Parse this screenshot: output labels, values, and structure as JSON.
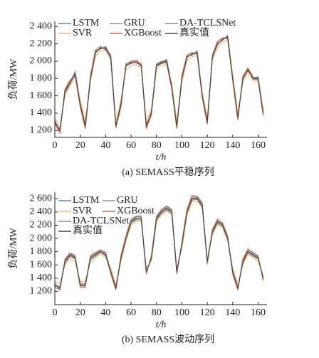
{
  "chart_data": [
    {
      "type": "line",
      "caption": "(a) SEMASS平稳序列",
      "xlabel": "t/h",
      "ylabel": "负荷/MW",
      "x": [
        0,
        4,
        8,
        12,
        16,
        20,
        24,
        28,
        32,
        36,
        40,
        44,
        48,
        52,
        56,
        60,
        64,
        68,
        72,
        76,
        80,
        84,
        88,
        92,
        96,
        100,
        104,
        108,
        112,
        116,
        120,
        124,
        128,
        132,
        136,
        140,
        144,
        148,
        152,
        156,
        160,
        164
      ],
      "xlim": [
        0,
        167
      ],
      "xticks": [
        0,
        20,
        40,
        60,
        80,
        100,
        120,
        140,
        160
      ],
      "ylim": [
        1120,
        2460
      ],
      "yticks": [
        {
          "value": 1200,
          "label": "1 200"
        },
        {
          "value": 1400,
          "label": "1 400"
        },
        {
          "value": 1600,
          "label": "1 600"
        },
        {
          "value": 1800,
          "label": "1 800"
        },
        {
          "value": 2000,
          "label": "2 000"
        },
        {
          "value": 2200,
          "label": "2 200"
        },
        {
          "value": 2400,
          "label": "2 400"
        }
      ],
      "legend": "upper left",
      "series": [
        {
          "name": "LSTM",
          "color": "#5b8fbf",
          "values": [
            1320,
            1180,
            1670,
            1760,
            1880,
            1520,
            1230,
            1820,
            2120,
            2140,
            2170,
            2060,
            1270,
            1480,
            1960,
            1970,
            2010,
            1940,
            1230,
            1420,
            1960,
            1990,
            2020,
            1720,
            1230,
            1790,
            2060,
            2070,
            2120,
            1620,
            1280,
            2040,
            2210,
            2240,
            2300,
            1820,
            1330,
            1820,
            1890,
            1810,
            1820,
            1380
          ]
        },
        {
          "name": "GRU",
          "color": "#8a9a84",
          "values": [
            1280,
            1220,
            1630,
            1740,
            1860,
            1480,
            1270,
            1790,
            2090,
            2160,
            2140,
            2040,
            1240,
            1520,
            1940,
            1990,
            1980,
            1960,
            1270,
            1390,
            1940,
            1970,
            1990,
            1690,
            1270,
            1810,
            2040,
            2090,
            2090,
            1590,
            1320,
            2060,
            2190,
            2260,
            2270,
            1790,
            1370,
            1790,
            1910,
            1790,
            1790,
            1420
          ]
        },
        {
          "name": "DA-TCLSNet",
          "color": "#8c8c96",
          "values": [
            1310,
            1190,
            1660,
            1750,
            1860,
            1510,
            1240,
            1810,
            2110,
            2150,
            2160,
            2050,
            1260,
            1490,
            1950,
            1990,
            1990,
            1950,
            1240,
            1410,
            1950,
            1980,
            2010,
            1710,
            1240,
            1800,
            2050,
            2080,
            2110,
            1610,
            1290,
            2050,
            2200,
            2250,
            2290,
            1810,
            1340,
            1810,
            1900,
            1800,
            1810,
            1390
          ]
        },
        {
          "name": "SVR",
          "color": "#f2b77a",
          "values": [
            1350,
            1230,
            1600,
            1720,
            1820,
            1550,
            1300,
            1760,
            2060,
            2120,
            2120,
            2010,
            1300,
            1550,
            1900,
            1950,
            1960,
            1920,
            1300,
            1450,
            1910,
            1950,
            1970,
            1750,
            1300,
            1760,
            2010,
            2050,
            2070,
            1650,
            1350,
            2010,
            2160,
            2220,
            2250,
            1850,
            1400,
            1760,
            1870,
            1770,
            1770,
            1450
          ]
        },
        {
          "name": "XGBoost",
          "color": "#e0643a",
          "values": [
            1280,
            1170,
            1680,
            1780,
            1830,
            1470,
            1220,
            1830,
            2130,
            2170,
            2130,
            2070,
            1230,
            1470,
            1970,
            2000,
            2010,
            1970,
            1220,
            1380,
            1970,
            2000,
            1980,
            1680,
            1220,
            1830,
            2070,
            2100,
            2080,
            1580,
            1270,
            2070,
            2230,
            2270,
            2260,
            1780,
            1320,
            1830,
            1920,
            1820,
            1780,
            1370
          ]
        },
        {
          "name": "真实值",
          "color": "#4a4a4a",
          "values": [
            1300,
            1200,
            1650,
            1750,
            1850,
            1500,
            1250,
            1800,
            2100,
            2150,
            2150,
            2050,
            1250,
            1500,
            1950,
            1980,
            1990,
            1950,
            1250,
            1400,
            1950,
            1980,
            2000,
            1700,
            1250,
            1800,
            2050,
            2080,
            2100,
            1600,
            1300,
            2050,
            2200,
            2250,
            2280,
            1800,
            1350,
            1800,
            1900,
            1800,
            1800,
            1400
          ]
        }
      ]
    },
    {
      "type": "line",
      "caption": "(b) SEMASS波动序列",
      "xlabel": "t/h",
      "ylabel": "负荷/MW",
      "x": [
        0,
        4,
        8,
        12,
        16,
        20,
        24,
        28,
        32,
        36,
        40,
        44,
        48,
        52,
        56,
        60,
        64,
        68,
        72,
        76,
        80,
        84,
        88,
        92,
        96,
        100,
        104,
        108,
        112,
        116,
        120,
        124,
        128,
        132,
        136,
        140,
        144,
        148,
        152,
        156,
        160,
        164
      ],
      "xlim": [
        0,
        167
      ],
      "xticks": [
        0,
        20,
        40,
        60,
        80,
        100,
        120,
        140,
        160
      ],
      "ylim": [
        1000,
        2700
      ],
      "yticks": [
        {
          "value": 1200,
          "label": "1 200"
        },
        {
          "value": 1400,
          "label": "1 400"
        },
        {
          "value": 1600,
          "label": "1 600"
        },
        {
          "value": 1800,
          "label": "1 800"
        },
        {
          "value": 2000,
          "label": "2 000"
        },
        {
          "value": 2200,
          "label": "2 200"
        },
        {
          "value": 2400,
          "label": "2 400"
        },
        {
          "value": 2600,
          "label": "2 600"
        }
      ],
      "legend": "upper left",
      "series": [
        {
          "name": "LSTM",
          "color": "#5b8fbf",
          "values": [
            1320,
            1230,
            1670,
            1770,
            1720,
            1280,
            1280,
            1720,
            1770,
            1820,
            1780,
            1520,
            1230,
            1720,
            2030,
            2270,
            2330,
            2320,
            1480,
            1720,
            2330,
            2420,
            2480,
            2420,
            1480,
            1920,
            2430,
            2630,
            2620,
            2520,
            1630,
            2120,
            2270,
            2220,
            2020,
            1480,
            1230,
            1670,
            1820,
            1770,
            1720,
            1380
          ]
        },
        {
          "name": "GRU",
          "color": "#8a9a84",
          "values": [
            1280,
            1270,
            1630,
            1730,
            1690,
            1320,
            1320,
            1680,
            1730,
            1790,
            1740,
            1480,
            1270,
            1680,
            1980,
            2230,
            2280,
            2280,
            1520,
            1680,
            2280,
            2380,
            2430,
            2380,
            1520,
            1880,
            2380,
            2580,
            2590,
            2480,
            1670,
            2080,
            2230,
            2180,
            1980,
            1520,
            1270,
            1630,
            1780,
            1730,
            1690,
            1420
          ]
        },
        {
          "name": "SVR",
          "color": "#f2b77a",
          "values": [
            1350,
            1300,
            1600,
            1700,
            1650,
            1350,
            1350,
            1650,
            1710,
            1760,
            1710,
            1550,
            1300,
            1650,
            1960,
            2200,
            2260,
            2260,
            1550,
            1660,
            2250,
            2350,
            2410,
            2360,
            1550,
            1850,
            2350,
            2560,
            2560,
            2460,
            1700,
            2050,
            2210,
            2160,
            1960,
            1550,
            1300,
            1600,
            1760,
            1710,
            1660,
            1450
          ]
        },
        {
          "name": "XGBoost",
          "color": "#e0643a",
          "values": [
            1270,
            1220,
            1690,
            1780,
            1740,
            1260,
            1260,
            1740,
            1790,
            1830,
            1790,
            1470,
            1220,
            1740,
            2040,
            2290,
            2340,
            2340,
            1460,
            1740,
            2340,
            2440,
            2490,
            2440,
            1460,
            1940,
            2440,
            2650,
            2640,
            2540,
            1610,
            2140,
            2290,
            2240,
            2040,
            1460,
            1220,
            1690,
            1840,
            1790,
            1740,
            1360
          ]
        },
        {
          "name": "DA-TCLSNet",
          "color": "#8c8c96",
          "values": [
            1310,
            1240,
            1660,
            1750,
            1710,
            1290,
            1290,
            1710,
            1760,
            1800,
            1760,
            1510,
            1240,
            1710,
            2010,
            2260,
            2310,
            2300,
            1490,
            1710,
            2310,
            2400,
            2460,
            2410,
            1490,
            1910,
            2410,
            2610,
            2610,
            2500,
            1640,
            2110,
            2260,
            2210,
            2010,
            1490,
            1240,
            1660,
            1800,
            1760,
            1710,
            1390
          ]
        },
        {
          "name": "真实值",
          "color": "#4a4a4a",
          "values": [
            1300,
            1250,
            1650,
            1750,
            1700,
            1300,
            1300,
            1700,
            1750,
            1800,
            1750,
            1500,
            1250,
            1700,
            2000,
            2250,
            2300,
            2300,
            1500,
            1700,
            2300,
            2400,
            2450,
            2400,
            1500,
            1900,
            2400,
            2600,
            2600,
            2500,
            1650,
            2100,
            2250,
            2200,
            2000,
            1500,
            1250,
            1650,
            1800,
            1750,
            1700,
            1400
          ]
        }
      ]
    }
  ]
}
